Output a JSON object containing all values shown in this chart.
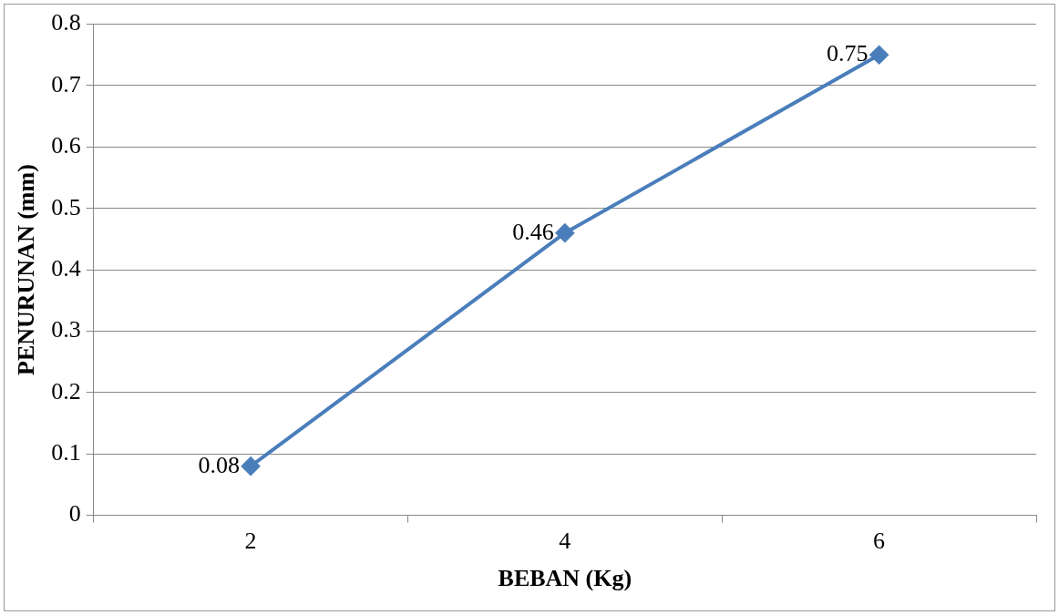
{
  "chart_data": {
    "type": "line",
    "xlabel": "BEBAN (Kg)",
    "ylabel": "PENURUNAN (mm)",
    "categories": [
      "2",
      "4",
      "6"
    ],
    "series": [
      {
        "color": "#4a7ebb",
        "values": [
          0.08,
          0.46,
          0.75
        ]
      }
    ],
    "ylim": [
      0,
      0.8
    ],
    "yticks": [
      0,
      0.1,
      0.2,
      0.3,
      0.4,
      0.5,
      0.6,
      0.7,
      0.8
    ],
    "grid": "y",
    "legend": false,
    "marker": "diamond",
    "line_style": "solid",
    "data_labels": true
  }
}
